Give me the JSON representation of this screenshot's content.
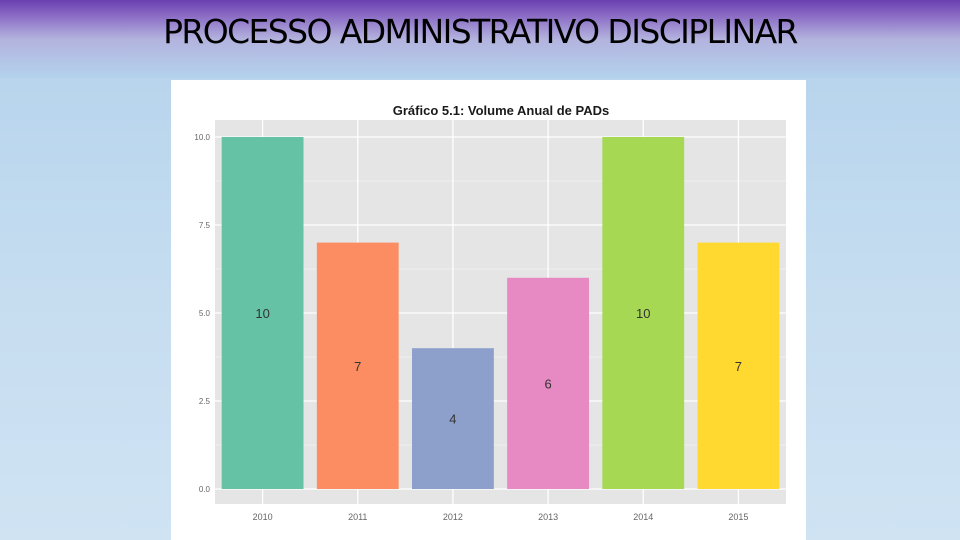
{
  "slide": {
    "title": "PROCESSO ADMINISTRATIVO DISCIPLINAR"
  },
  "chart_data": {
    "type": "bar",
    "title": "Gráfico 5.1: Volume Anual de PADs",
    "xlabel": "",
    "ylabel": "",
    "categories": [
      "2010",
      "2011",
      "2012",
      "2013",
      "2014",
      "2015"
    ],
    "values": [
      10,
      7,
      4,
      6,
      10,
      7
    ],
    "data_labels": [
      "10",
      "7",
      "4",
      "6",
      "10",
      "7"
    ],
    "colors": [
      "#66c2a5",
      "#fc8d62",
      "#8da0cb",
      "#e78ac3",
      "#a6d854",
      "#ffd92f"
    ],
    "ylim": [
      0,
      10
    ],
    "yticks": [
      0,
      2.5,
      5,
      7.5,
      10
    ],
    "ytick_labels": [
      "0.0",
      "2.5",
      "5.0",
      "7.5",
      "10.0"
    ],
    "grid": true,
    "legend": "none"
  }
}
